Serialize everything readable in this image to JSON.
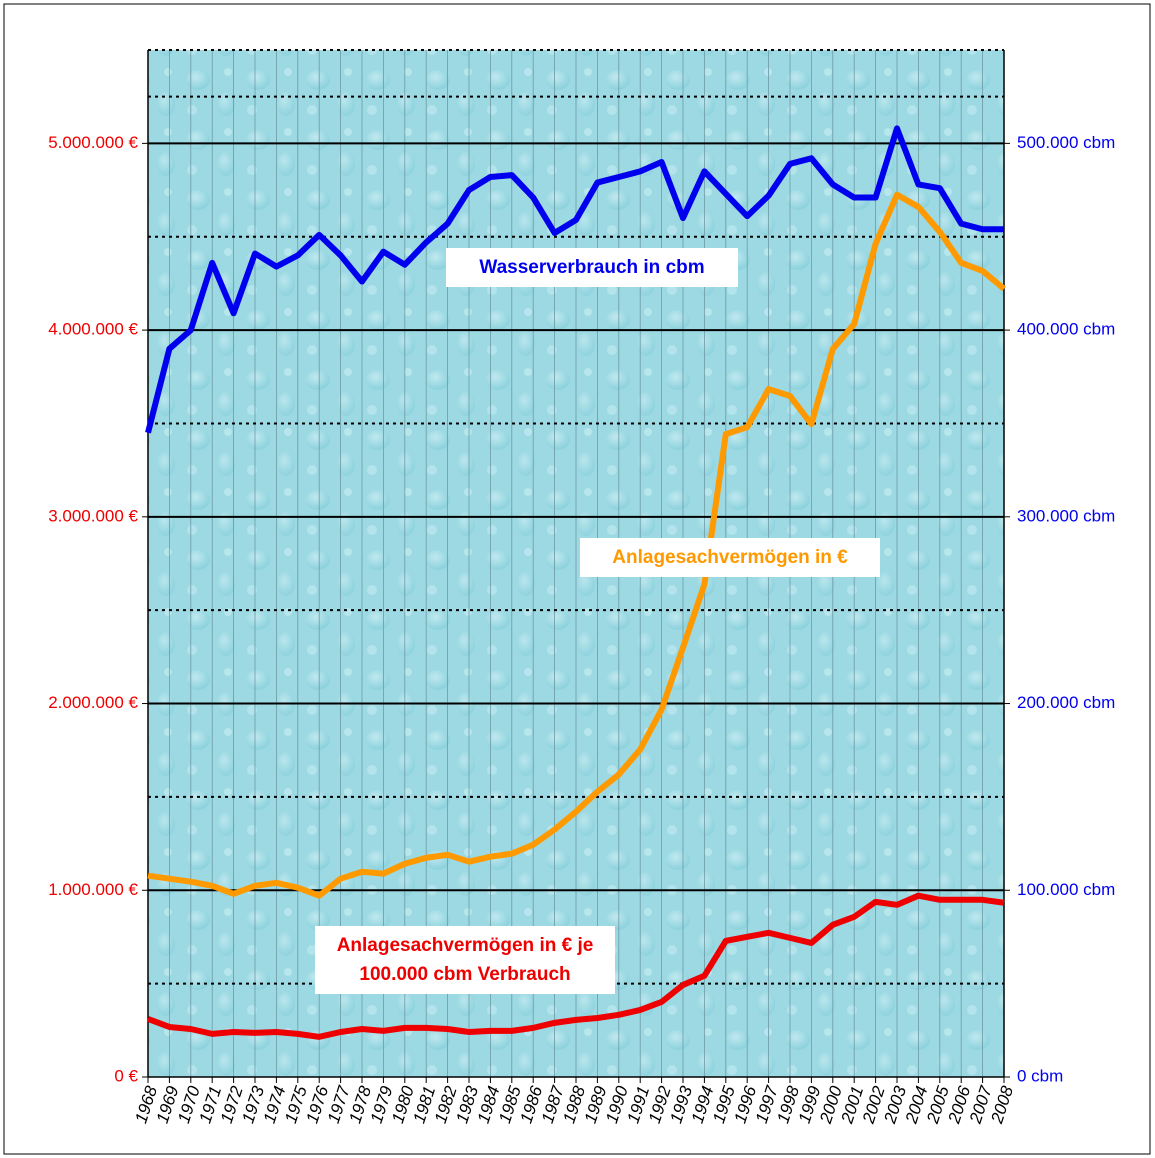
{
  "chart_data": {
    "type": "line",
    "categories": [
      "1968",
      "1969",
      "1970",
      "1971",
      "1972",
      "1973",
      "1974",
      "1975",
      "1976",
      "1977",
      "1978",
      "1979",
      "1980",
      "1981",
      "1982",
      "1983",
      "1984",
      "1985",
      "1986",
      "1987",
      "1988",
      "1989",
      "1990",
      "1991",
      "1992",
      "1993",
      "1994",
      "1995",
      "1996",
      "1997",
      "1998",
      "1999",
      "2000",
      "2001",
      "2002",
      "2003",
      "2004",
      "2005",
      "2006",
      "2007",
      "2008"
    ],
    "series": [
      {
        "name": "Wasserverbrauch in cbm",
        "color": "#0000ee",
        "axis": "y2",
        "values": [
          345000,
          390000,
          400000,
          436000,
          409000,
          441000,
          434000,
          440000,
          451000,
          440000,
          426000,
          442000,
          435000,
          447000,
          457000,
          475000,
          482000,
          483000,
          471000,
          452000,
          459000,
          479000,
          482000,
          485000,
          490000,
          460000,
          485000,
          473000,
          461000,
          472000,
          489000,
          492000,
          478000,
          471000,
          471000,
          508000,
          478000,
          476000,
          457000,
          454000,
          454000
        ]
      },
      {
        "name": "Anlagesachvermögen in €",
        "color": "#ff9900",
        "values": [
          1078000,
          1062000,
          1046000,
          1024000,
          981000,
          1024000,
          1040000,
          1014000,
          971000,
          1062000,
          1099000,
          1089000,
          1142000,
          1174000,
          1190000,
          1153000,
          1180000,
          1196000,
          1244000,
          1325000,
          1421000,
          1528000,
          1620000,
          1754000,
          1968000,
          2300000,
          2638000,
          3443000,
          3480000,
          3684000,
          3647000,
          3497000,
          3899000,
          4033000,
          4462000,
          4725000,
          4660000,
          4526000,
          4360000,
          4317000,
          4221000
        ]
      },
      {
        "name": "Anlagesachvermögen in € je 100.000 cbm Verbrauch",
        "color": "#ee0000",
        "values": [
          311000,
          268000,
          257000,
          231000,
          241000,
          236000,
          241000,
          231000,
          215000,
          241000,
          257000,
          247000,
          263000,
          263000,
          257000,
          241000,
          247000,
          247000,
          263000,
          290000,
          306000,
          316000,
          333000,
          359000,
          402000,
          493000,
          542000,
          729000,
          751000,
          772000,
          745000,
          718000,
          815000,
          858000,
          938000,
          922000,
          971000,
          949000,
          949000,
          949000,
          933000
        ]
      }
    ],
    "ylim": [
      0,
      5500000
    ],
    "yticks": [
      {
        "value": 0,
        "label": "0 €"
      },
      {
        "value": 1000000,
        "label": "1.000.000 €"
      },
      {
        "value": 2000000,
        "label": "2.000.000 €"
      },
      {
        "value": 3000000,
        "label": "3.000.000 €"
      },
      {
        "value": 4000000,
        "label": "4.000.000 €"
      },
      {
        "value": 5000000,
        "label": "5.000.000 €"
      }
    ],
    "y2lim": [
      0,
      550000
    ],
    "y2ticks": [
      {
        "value": 0,
        "label": "0 cbm"
      },
      {
        "value": 100000,
        "label": "100.000 cbm"
      },
      {
        "value": 200000,
        "label": "200.000 cbm"
      },
      {
        "value": 300000,
        "label": "300.000 cbm"
      },
      {
        "value": 400000,
        "label": "400.000 cbm"
      },
      {
        "value": 500000,
        "label": "500.000 cbm"
      }
    ],
    "ytick_color": "#ee0000",
    "y2tick_color": "#0000ee",
    "grid": true
  }
}
